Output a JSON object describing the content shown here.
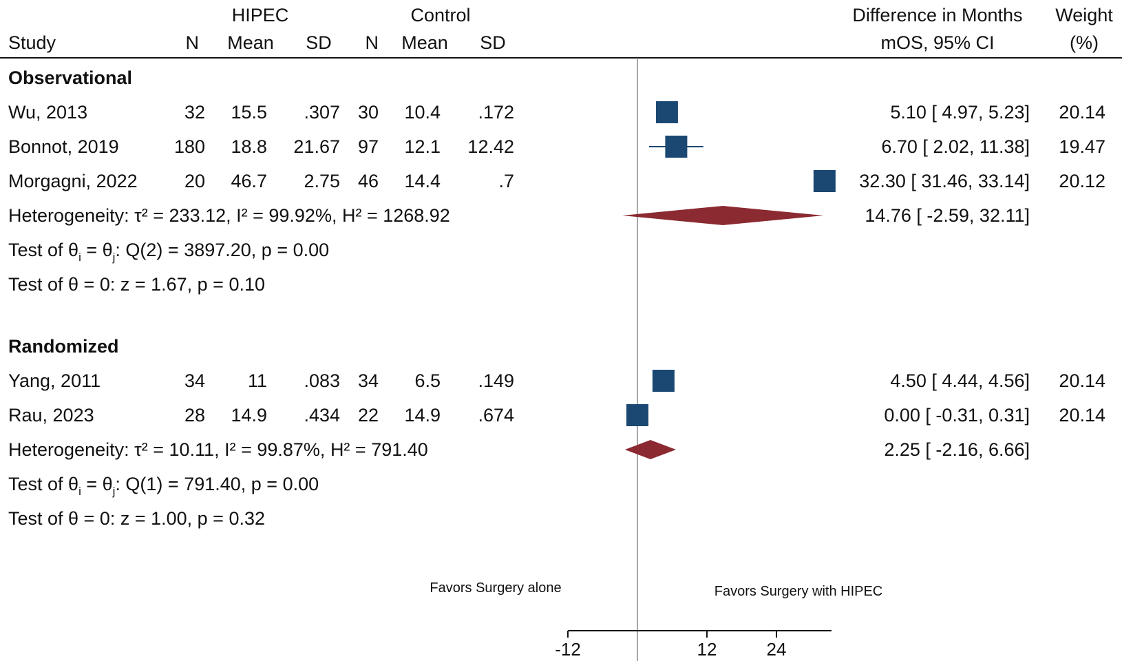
{
  "chart_data": {
    "type": "forest",
    "header": {
      "study": "Study",
      "hipec": "HIPEC",
      "control": "Control",
      "n": "N",
      "mean": "Mean",
      "sd": "SD",
      "effect_line1": "Difference in Months",
      "effect_line2": "mOS, 95% CI",
      "weight_line1": "Weight",
      "weight_line2": "(%)"
    },
    "groups": [
      {
        "name": "Observational",
        "studies": [
          {
            "study": "Wu, 2013",
            "n1": "32",
            "mean1": "15.5",
            "sd1": ".307",
            "n2": "30",
            "mean2": "10.4",
            "sd2": ".172",
            "est": 5.1,
            "lo": 4.97,
            "hi": 5.23,
            "ci_text": "5.10 [   4.97,    5.23]",
            "weight": "20.14"
          },
          {
            "study": "Bonnot, 2019",
            "n1": "180",
            "mean1": "18.8",
            "sd1": "21.67",
            "n2": "97",
            "mean2": "12.1",
            "sd2": "12.42",
            "est": 6.7,
            "lo": 2.02,
            "hi": 11.38,
            "ci_text": "6.70 [   2.02,  11.38]",
            "weight": "19.47"
          },
          {
            "study": "Morgagni, 2022",
            "n1": "20",
            "mean1": "46.7",
            "sd1": "2.75",
            "n2": "46",
            "mean2": "14.4",
            "sd2": ".7",
            "est": 32.3,
            "lo": 31.46,
            "hi": 33.14,
            "ci_text": "32.30 [ 31.46,  33.14]",
            "weight": "20.12"
          }
        ],
        "heterogeneity": "Heterogeneity: τ² = 233.12, I² = 99.92%, H² = 1268.92",
        "pooled": {
          "est": 14.76,
          "lo": -2.59,
          "hi": 32.11,
          "ci_text": "14.76 [  -2.59,  32.11]"
        },
        "test_q_pre": "Test of θ",
        "test_q_sub_i": "i",
        "test_q_mid": " = θ",
        "test_q_sub_j": "j",
        "test_q_post": ": Q(2) = 3897.20, p = 0.00",
        "test_z": "Test of θ = 0: z = 1.67, p = 0.10"
      },
      {
        "name": "Randomized",
        "studies": [
          {
            "study": "Yang, 2011",
            "n1": "34",
            "mean1": "11",
            "sd1": ".083",
            "n2": "34",
            "mean2": "6.5",
            "sd2": ".149",
            "est": 4.5,
            "lo": 4.44,
            "hi": 4.56,
            "ci_text": "4.50 [   4.44,    4.56]",
            "weight": "20.14"
          },
          {
            "study": "Rau, 2023",
            "n1": "28",
            "mean1": "14.9",
            "sd1": ".434",
            "n2": "22",
            "mean2": "14.9",
            "sd2": ".674",
            "est": 0.0,
            "lo": -0.31,
            "hi": 0.31,
            "ci_text": "0.00 [  -0.31,    0.31]",
            "weight": "20.14"
          }
        ],
        "heterogeneity": "Heterogeneity: τ² = 10.11, I² = 99.87%, H² = 791.40",
        "pooled": {
          "est": 2.25,
          "lo": -2.16,
          "hi": 6.66,
          "ci_text": "2.25 [  -2.16,    6.66]"
        },
        "test_q_pre": "Test of θ",
        "test_q_sub_i": "i",
        "test_q_mid": " = θ",
        "test_q_sub_j": "j",
        "test_q_post": ": Q(1) = 791.40, p = 0.00",
        "test_z": "Test of θ = 0: z = 1.00, p = 0.32"
      }
    ],
    "favors_left": "Favors Surgery alone",
    "favors_right": "Favors Surgery with HIPEC",
    "x_ticks": [
      -12,
      12,
      24
    ],
    "x_tick_labels": [
      "-12",
      "12",
      "24"
    ],
    "xlim": [
      -12,
      33.5
    ],
    "null_line": 0,
    "colors": {
      "study_marker": "#1b4872",
      "pooled_marker": "#8b2a31",
      "line": "#111111",
      "null_line": "#8a8a8a"
    }
  }
}
